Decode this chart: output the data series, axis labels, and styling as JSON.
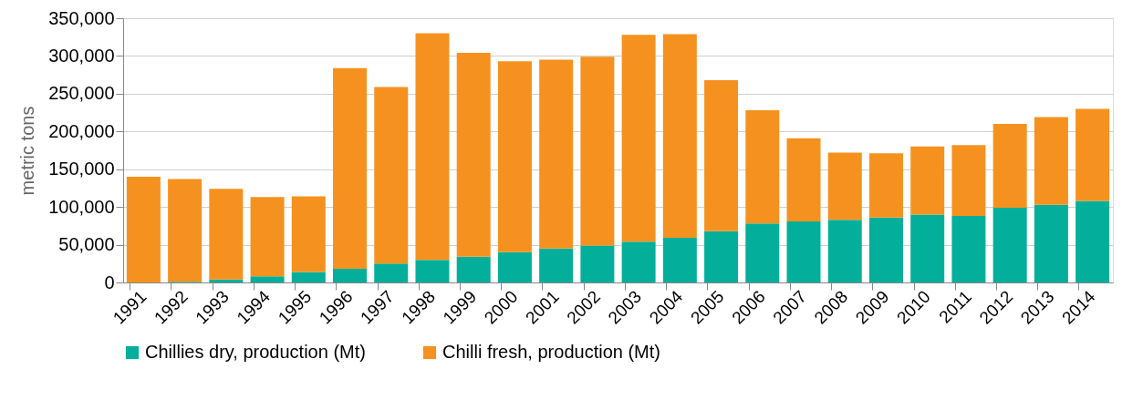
{
  "chart_data": {
    "type": "bar",
    "stacked": true,
    "ylabel": "metric tons",
    "categories": [
      "1991",
      "1992",
      "1993",
      "1994",
      "1995",
      "1996",
      "1997",
      "1998",
      "1999",
      "2000",
      "2001",
      "2002",
      "2003",
      "2004",
      "2005",
      "2006",
      "2007",
      "2008",
      "2009",
      "2010",
      "2011",
      "2012",
      "2013",
      "2014"
    ],
    "series": [
      {
        "name": "Chillies dry, production (Mt)",
        "color": "#03af9b",
        "values": [
          0,
          1000,
          4000,
          8000,
          14000,
          18000,
          25000,
          30000,
          34000,
          40000,
          45000,
          49000,
          54000,
          59000,
          68000,
          78000,
          81000,
          83000,
          86000,
          90000,
          88000,
          99000,
          103000,
          108000
        ]
      },
      {
        "name": "Chilli  fresh, production (Mt)",
        "color": "#f5921f",
        "values": [
          140000,
          136000,
          120000,
          105000,
          100000,
          266000,
          234000,
          300000,
          270000,
          253000,
          250000,
          250000,
          274000,
          270000,
          200000,
          150000,
          110000,
          89000,
          85000,
          90000,
          94000,
          111000,
          116000,
          122000
        ]
      }
    ],
    "ylim": [
      0,
      350000
    ],
    "yticks": [
      0,
      {
        "value": 50000,
        "label": "50,000"
      },
      {
        "value": 100000,
        "label": "100,000"
      },
      {
        "value": 150000,
        "label": "150,000"
      },
      {
        "value": 200000,
        "label": "200,000"
      },
      {
        "value": 250000,
        "label": "250,000"
      },
      {
        "value": 300000,
        "label": "300,000"
      },
      {
        "value": 350000,
        "label": "350,000"
      }
    ],
    "grid": "y",
    "legend": "bottom"
  }
}
